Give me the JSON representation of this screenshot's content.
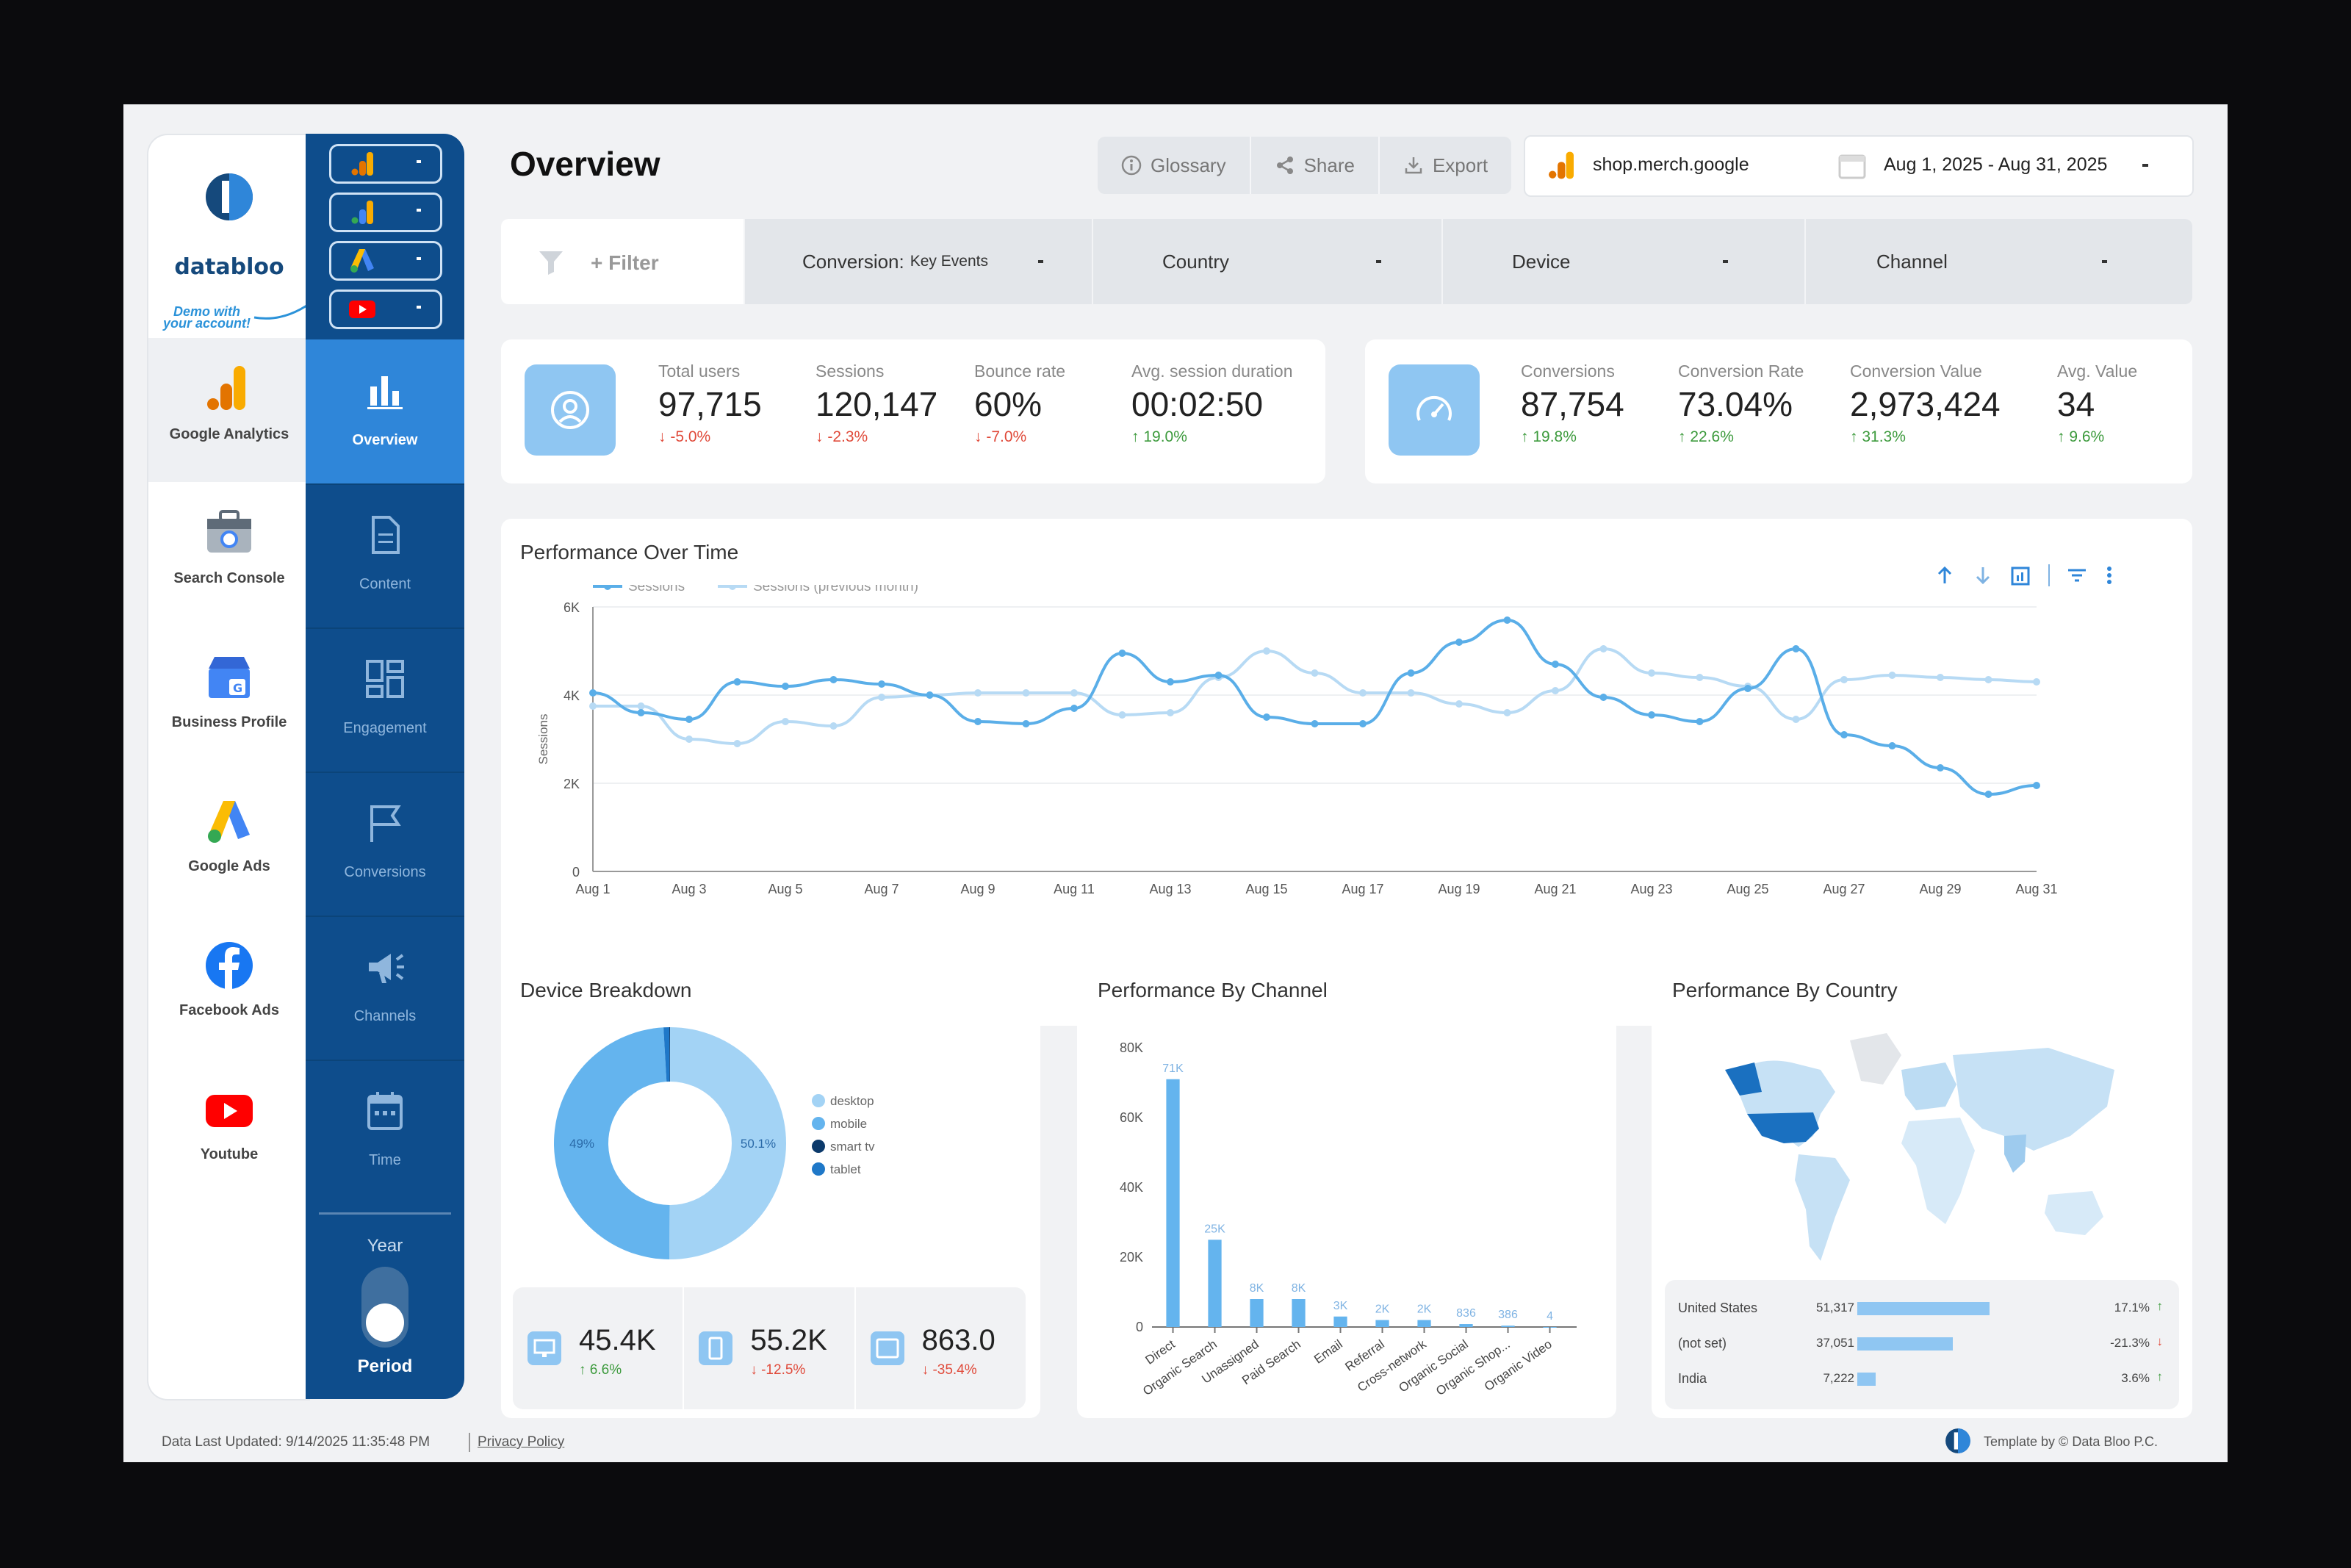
{
  "brand": {
    "name": "databloo",
    "demo_line1": "Demo with",
    "demo_line2": "your account!"
  },
  "sources": [
    {
      "label": "Google Analytics",
      "icon": "google-analytics-icon"
    },
    {
      "label": "Search Console",
      "icon": "search-console-icon"
    },
    {
      "label": "Business Profile",
      "icon": "business-profile-icon"
    },
    {
      "label": "Google Ads",
      "icon": "google-ads-icon"
    },
    {
      "label": "Facebook Ads",
      "icon": "facebook-icon"
    },
    {
      "label": "Youtube",
      "icon": "youtube-icon"
    }
  ],
  "nav": [
    {
      "label": "Overview",
      "icon": "bar-chart-icon"
    },
    {
      "label": "Content",
      "icon": "document-icon"
    },
    {
      "label": "Engagement",
      "icon": "grid-icon"
    },
    {
      "label": "Conversions",
      "icon": "flag-icon"
    },
    {
      "label": "Channels",
      "icon": "megaphone-icon"
    },
    {
      "label": "Time",
      "icon": "calendar-icon"
    }
  ],
  "period": {
    "label": "Year",
    "caption": "Period"
  },
  "header": {
    "title": "Overview",
    "glossary": "Glossary",
    "share": "Share",
    "export": "Export",
    "site": "shop.merch.google",
    "date_range": "Aug 1, 2025 - Aug 31, 2025"
  },
  "filters": {
    "add": "+ Filter",
    "conversion_label": "Conversion:",
    "conversion_value": "Key Events",
    "country": "Country",
    "device": "Device",
    "channel": "Channel"
  },
  "kpis_left": [
    {
      "label": "Total users",
      "value": "97,715",
      "delta": "-5.0%",
      "dir": "down"
    },
    {
      "label": "Sessions",
      "value": "120,147",
      "delta": "-2.3%",
      "dir": "down"
    },
    {
      "label": "Bounce rate",
      "value": "60%",
      "delta": "-7.0%",
      "dir": "down"
    },
    {
      "label": "Avg. session duration",
      "value": "00:02:50",
      "delta": "19.0%",
      "dir": "up"
    }
  ],
  "kpis_right": [
    {
      "label": "Conversions",
      "value": "87,754",
      "delta": "19.8%",
      "dir": "up"
    },
    {
      "label": "Conversion Rate",
      "value": "73.04%",
      "delta": "22.6%",
      "dir": "up"
    },
    {
      "label": "Conversion Value",
      "value": "2,973,424",
      "delta": "31.3%",
      "dir": "up"
    },
    {
      "label": "Avg. Value",
      "value": "34",
      "delta": "9.6%",
      "dir": "up"
    }
  ],
  "perf_title": "Performance Over Time",
  "device_title": "Device Breakdown",
  "channel_title": "Performance By Channel",
  "country_title": "Performance By Country",
  "device_stats": [
    {
      "value": "45.4K",
      "delta": "6.6%",
      "dir": "up",
      "icon": "desktop-icon"
    },
    {
      "value": "55.2K",
      "delta": "-12.5%",
      "dir": "down",
      "icon": "mobile-icon"
    },
    {
      "value": "863.0",
      "delta": "-35.4%",
      "dir": "down",
      "icon": "tablet-icon"
    }
  ],
  "footer": {
    "updated": "Data Last Updated: 9/14/2025 11:35:48 PM",
    "privacy": "Privacy Policy",
    "credit": "Template by © Data Bloo P.C."
  },
  "colors": {
    "accent": "#2f86d9",
    "navy": "#0e4d8c",
    "series_current": "#5aaee8",
    "series_previous": "#b7daf4"
  },
  "chart_data": [
    {
      "type": "line",
      "title": "Performance Over Time",
      "ylabel": "Sessions",
      "ylim": [
        0,
        6000
      ],
      "yticks": [
        "0",
        "2K",
        "4K",
        "6K"
      ],
      "xticks": [
        "Aug 1",
        "Aug 3",
        "Aug 5",
        "Aug 7",
        "Aug 9",
        "Aug 11",
        "Aug 13",
        "Aug 15",
        "Aug 17",
        "Aug 19",
        "Aug 21",
        "Aug 23",
        "Aug 25",
        "Aug 27",
        "Aug 29",
        "Aug 31"
      ],
      "legend": "top-left",
      "series": [
        {
          "name": "Sessions",
          "color": "#5aaee8",
          "values": [
            4050,
            3600,
            3450,
            4300,
            4200,
            4350,
            4250,
            4000,
            3400,
            3350,
            3700,
            4950,
            4300,
            4450,
            3500,
            3350,
            3350,
            4500,
            5200,
            5700,
            4700,
            3950,
            3550,
            3400,
            4150,
            5050,
            3100,
            2850,
            2350,
            1750,
            1950
          ]
        },
        {
          "name": "Sessions (previous month)",
          "color": "#b7daf4",
          "values": [
            3750,
            3750,
            3000,
            2900,
            3400,
            3300,
            3950,
            4000,
            4050,
            4050,
            4050,
            3550,
            3600,
            4400,
            5000,
            4500,
            4050,
            4050,
            3800,
            3600,
            4100,
            5050,
            4500,
            4400,
            4200,
            3450,
            4350,
            4450,
            4400,
            4350,
            4300
          ]
        }
      ]
    },
    {
      "type": "pie",
      "title": "Device Breakdown",
      "legend": "right",
      "slices": [
        {
          "name": "desktop",
          "value": 50.1,
          "color": "#a3d3f5"
        },
        {
          "name": "mobile",
          "value": 49.0,
          "color": "#64b4ee"
        },
        {
          "name": "smart tv",
          "value": 0.1,
          "color": "#0c3a6b"
        },
        {
          "name": "tablet",
          "value": 0.8,
          "color": "#1f78c8"
        }
      ],
      "labels": [
        "50.1%",
        "49%"
      ]
    },
    {
      "type": "bar",
      "title": "Performance By Channel",
      "ylim": [
        0,
        80000
      ],
      "yticks": [
        "0",
        "20K",
        "40K",
        "60K",
        "80K"
      ],
      "categories": [
        "Direct",
        "Organic Search",
        "Unassigned",
        "Paid Search",
        "Email",
        "Referral",
        "Cross-network",
        "Organic Social",
        "Organic Shop...",
        "Organic Video"
      ],
      "values": [
        71000,
        25000,
        8000,
        8000,
        3000,
        2000,
        2000,
        836,
        386,
        4
      ],
      "data_labels": [
        "71K",
        "25K",
        "8K",
        "8K",
        "3K",
        "2K",
        "2K",
        "836",
        "386",
        "4"
      ]
    },
    {
      "type": "table",
      "title": "Performance By Country",
      "rows": [
        {
          "country": "United States",
          "value": "51,317",
          "share": "17.1%",
          "dir": "up",
          "fraction": 1.0
        },
        {
          "country": "(not set)",
          "value": "37,051",
          "share": "-21.3%",
          "dir": "down",
          "fraction": 0.72
        },
        {
          "country": "India",
          "value": "7,222",
          "share": "3.6%",
          "dir": "up",
          "fraction": 0.14
        }
      ]
    }
  ]
}
